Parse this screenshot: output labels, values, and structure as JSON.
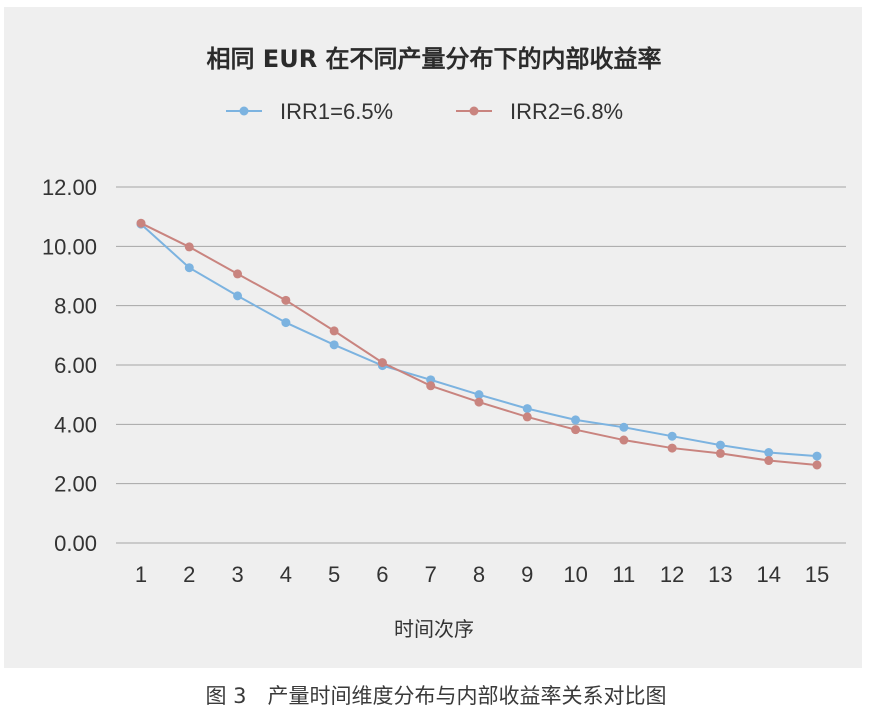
{
  "chart_data": {
    "type": "line",
    "title": "相同 EUR 在不同产量分布下的内部收益率",
    "xlabel": "时间次序",
    "ylabel": "",
    "ylim": [
      0,
      12
    ],
    "yticks": [
      "0.00",
      "2.00",
      "4.00",
      "6.00",
      "8.00",
      "10.00",
      "12.00"
    ],
    "categories": [
      "1",
      "2",
      "3",
      "4",
      "5",
      "6",
      "7",
      "8",
      "9",
      "10",
      "11",
      "12",
      "13",
      "14",
      "15"
    ],
    "legend_position": "top-center",
    "grid": true,
    "series": [
      {
        "name": "IRR1=6.5%",
        "color": "#7cb3e0",
        "values": [
          10.75,
          9.28,
          8.33,
          7.43,
          6.68,
          5.98,
          5.5,
          5.0,
          4.53,
          4.15,
          3.9,
          3.6,
          3.3,
          3.05,
          2.93
        ]
      },
      {
        "name": "IRR2=6.8%",
        "color": "#c9847f",
        "values": [
          10.78,
          9.98,
          9.07,
          8.18,
          7.15,
          6.08,
          5.3,
          4.75,
          4.25,
          3.82,
          3.47,
          3.2,
          3.02,
          2.78,
          2.63
        ]
      }
    ]
  },
  "caption": "图 3　产量时间维度分布与内部收益率关系对比图"
}
